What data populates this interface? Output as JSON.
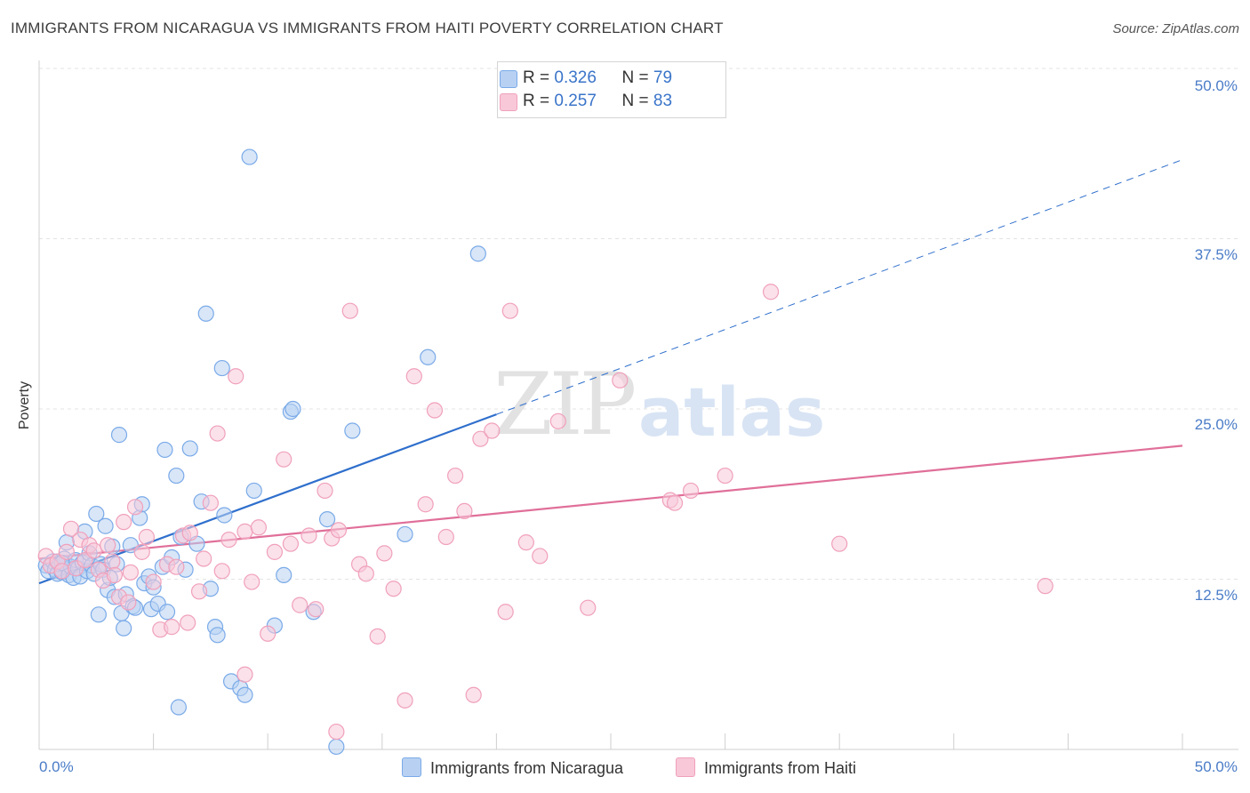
{
  "chart_data": {
    "type": "scatter",
    "title": "IMMIGRANTS FROM NICARAGUA VS IMMIGRANTS FROM HAITI POVERTY CORRELATION CHART",
    "source": "Source: ZipAtlas.com",
    "xlabel": "",
    "ylabel": "Poverty",
    "xlim": [
      0,
      50
    ],
    "ylim": [
      0,
      50
    ],
    "y_ticks": [
      {
        "value": 12.5,
        "label": "12.5%"
      },
      {
        "value": 25.0,
        "label": "25.0%"
      },
      {
        "value": 37.5,
        "label": "37.5%"
      },
      {
        "value": 50.0,
        "label": "50.0%"
      }
    ],
    "x_tick_labels": {
      "min": "0.0%",
      "max": "50.0%"
    },
    "watermark": {
      "part1": "ZIP",
      "part2": "atlas"
    },
    "legend": [
      {
        "name": "Immigrants from Nicaragua",
        "r_label": "R =",
        "r": "0.326",
        "n_label": "N =",
        "n": "79",
        "color": "#7aaae8",
        "fill": "#b8d1f3",
        "line": "#2f6fcc"
      },
      {
        "name": "Immigrants from Haiti",
        "r_label": "R =",
        "r": "0.257",
        "n_label": "N =",
        "n": "83",
        "color": "#f0a0bb",
        "fill": "#f8c8d8",
        "line": "#e06f99"
      }
    ],
    "series": [
      {
        "name": "Immigrants from Nicaragua",
        "trend": {
          "x0": 0,
          "y0": 12.2,
          "x1": 20,
          "y1": 24.6,
          "dash_to_x": 50,
          "dash_to_y": 43.3
        },
        "points": [
          [
            0.3,
            13.5
          ],
          [
            0.4,
            13.1
          ],
          [
            0.6,
            13.8
          ],
          [
            0.7,
            13.2
          ],
          [
            0.8,
            12.9
          ],
          [
            0.9,
            13.6
          ],
          [
            1.0,
            13.0
          ],
          [
            1.1,
            14.0
          ],
          [
            1.2,
            15.2
          ],
          [
            1.3,
            12.8
          ],
          [
            1.4,
            13.4
          ],
          [
            1.5,
            12.6
          ],
          [
            1.6,
            13.9
          ],
          [
            1.7,
            13.3
          ],
          [
            1.8,
            12.7
          ],
          [
            1.9,
            13.7
          ],
          [
            2.0,
            16.0
          ],
          [
            2.1,
            13.1
          ],
          [
            2.2,
            14.4
          ],
          [
            2.3,
            13.5
          ],
          [
            2.4,
            12.9
          ],
          [
            2.5,
            17.3
          ],
          [
            2.7,
            13.6
          ],
          [
            2.8,
            13.2
          ],
          [
            2.9,
            16.4
          ],
          [
            3.0,
            11.7
          ],
          [
            3.1,
            12.6
          ],
          [
            3.2,
            14.9
          ],
          [
            3.3,
            11.2
          ],
          [
            3.4,
            13.6
          ],
          [
            3.6,
            10.0
          ],
          [
            3.7,
            8.9
          ],
          [
            3.8,
            11.4
          ],
          [
            4.0,
            15.0
          ],
          [
            4.1,
            10.5
          ],
          [
            4.2,
            10.4
          ],
          [
            4.4,
            17.0
          ],
          [
            4.5,
            18.0
          ],
          [
            4.6,
            12.2
          ],
          [
            4.8,
            12.7
          ],
          [
            4.9,
            10.3
          ],
          [
            5.0,
            11.9
          ],
          [
            5.2,
            10.7
          ],
          [
            5.4,
            13.4
          ],
          [
            5.5,
            22.0
          ],
          [
            5.6,
            10.1
          ],
          [
            5.8,
            14.1
          ],
          [
            6.0,
            20.1
          ],
          [
            6.2,
            15.6
          ],
          [
            6.4,
            13.2
          ],
          [
            6.6,
            22.1
          ],
          [
            6.9,
            15.1
          ],
          [
            7.1,
            18.2
          ],
          [
            7.3,
            32.0
          ],
          [
            7.5,
            11.8
          ],
          [
            7.7,
            9.0
          ],
          [
            7.8,
            8.4
          ],
          [
            8.0,
            28.0
          ],
          [
            8.1,
            17.2
          ],
          [
            8.4,
            5.0
          ],
          [
            8.8,
            4.5
          ],
          [
            9.0,
            4.0
          ],
          [
            9.2,
            43.5
          ],
          [
            9.4,
            19.0
          ],
          [
            10.3,
            9.1
          ],
          [
            10.7,
            12.8
          ],
          [
            11.0,
            24.8
          ],
          [
            11.1,
            25.0
          ],
          [
            12.0,
            10.1
          ],
          [
            12.6,
            16.9
          ],
          [
            13.0,
            0.2
          ],
          [
            13.7,
            23.4
          ],
          [
            16.0,
            15.8
          ],
          [
            17.0,
            28.8
          ],
          [
            19.2,
            36.4
          ],
          [
            2.6,
            9.9
          ],
          [
            3.5,
            23.1
          ],
          [
            1.0,
            13.7
          ],
          [
            6.1,
            3.1
          ]
        ]
      },
      {
        "name": "Immigrants from Haiti",
        "trend": {
          "x0": 0,
          "y0": 14.0,
          "x1": 50,
          "y1": 22.3
        },
        "points": [
          [
            0.3,
            14.2
          ],
          [
            0.5,
            13.5
          ],
          [
            0.8,
            13.8
          ],
          [
            1.0,
            13.1
          ],
          [
            1.2,
            14.5
          ],
          [
            1.4,
            16.2
          ],
          [
            1.6,
            13.3
          ],
          [
            1.8,
            15.4
          ],
          [
            2.0,
            13.9
          ],
          [
            2.2,
            15.0
          ],
          [
            2.4,
            14.6
          ],
          [
            2.6,
            13.2
          ],
          [
            2.8,
            12.4
          ],
          [
            3.0,
            15.0
          ],
          [
            3.2,
            13.8
          ],
          [
            3.5,
            11.2
          ],
          [
            3.7,
            16.7
          ],
          [
            3.9,
            10.8
          ],
          [
            4.0,
            13.0
          ],
          [
            4.2,
            17.8
          ],
          [
            4.5,
            14.5
          ],
          [
            4.7,
            15.6
          ],
          [
            5.0,
            12.3
          ],
          [
            5.3,
            8.8
          ],
          [
            5.6,
            13.6
          ],
          [
            5.8,
            9.0
          ],
          [
            6.0,
            13.4
          ],
          [
            6.3,
            15.7
          ],
          [
            6.6,
            15.9
          ],
          [
            7.0,
            11.6
          ],
          [
            7.2,
            14.0
          ],
          [
            7.5,
            18.1
          ],
          [
            7.8,
            23.2
          ],
          [
            8.0,
            13.1
          ],
          [
            8.3,
            15.4
          ],
          [
            8.6,
            27.4
          ],
          [
            9.0,
            16.0
          ],
          [
            9.3,
            12.3
          ],
          [
            9.6,
            16.3
          ],
          [
            10.0,
            8.5
          ],
          [
            10.3,
            14.5
          ],
          [
            10.7,
            21.3
          ],
          [
            11.0,
            15.1
          ],
          [
            11.4,
            10.6
          ],
          [
            11.8,
            15.7
          ],
          [
            12.1,
            10.3
          ],
          [
            12.5,
            19.0
          ],
          [
            12.8,
            15.5
          ],
          [
            13.1,
            16.1
          ],
          [
            13.6,
            32.2
          ],
          [
            14.0,
            13.6
          ],
          [
            14.3,
            12.9
          ],
          [
            14.8,
            8.3
          ],
          [
            15.1,
            14.4
          ],
          [
            15.5,
            11.8
          ],
          [
            16.0,
            3.6
          ],
          [
            16.4,
            27.4
          ],
          [
            16.9,
            18.0
          ],
          [
            17.3,
            24.9
          ],
          [
            17.8,
            15.6
          ],
          [
            18.2,
            20.1
          ],
          [
            18.6,
            17.5
          ],
          [
            19.3,
            22.8
          ],
          [
            19.8,
            23.4
          ],
          [
            20.4,
            10.1
          ],
          [
            20.6,
            32.2
          ],
          [
            21.3,
            15.2
          ],
          [
            21.9,
            14.2
          ],
          [
            22.7,
            24.1
          ],
          [
            24.0,
            10.4
          ],
          [
            25.4,
            27.1
          ],
          [
            27.6,
            18.3
          ],
          [
            27.8,
            18.1
          ],
          [
            28.5,
            19.0
          ],
          [
            30.0,
            20.1
          ],
          [
            32.0,
            33.6
          ],
          [
            35.0,
            15.1
          ],
          [
            44.0,
            12.0
          ],
          [
            19.0,
            4.0
          ],
          [
            13.0,
            1.3
          ],
          [
            9.0,
            5.5
          ],
          [
            6.5,
            9.3
          ],
          [
            3.3,
            12.8
          ]
        ]
      }
    ]
  }
}
